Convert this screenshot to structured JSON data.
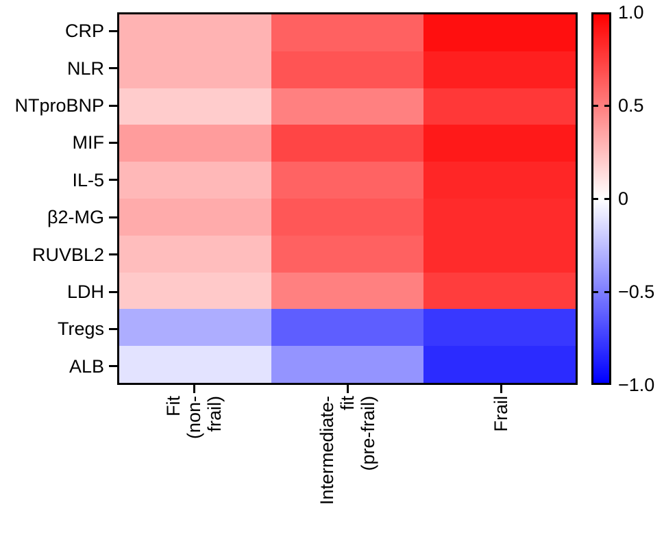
{
  "figure": {
    "kind": "correlation-heatmap-figure",
    "background": "#ffffff",
    "border_color": "#000000"
  },
  "chart_data": {
    "type": "heatmap",
    "rows": [
      "CRP",
      "NLR",
      "NTproBNP",
      "MIF",
      "IL-5",
      "β2-MG",
      "RUVBL2",
      "LDH",
      "Tregs",
      "ALB"
    ],
    "columns": [
      "Fit (non-frail)",
      "Intermediate-fit\n(pre-frail)",
      "Frail"
    ],
    "values": [
      [
        0.3,
        0.62,
        0.94
      ],
      [
        0.3,
        0.67,
        0.88
      ],
      [
        0.2,
        0.5,
        0.78
      ],
      [
        0.39,
        0.73,
        0.9
      ],
      [
        0.28,
        0.61,
        0.85
      ],
      [
        0.33,
        0.66,
        0.83
      ],
      [
        0.26,
        0.62,
        0.83
      ],
      [
        0.21,
        0.5,
        0.76
      ],
      [
        -0.32,
        -0.63,
        -0.78
      ],
      [
        -0.11,
        -0.42,
        -0.83
      ]
    ],
    "colormap": "blue-white-red",
    "vmin": -1.0,
    "vmax": 1.0,
    "colorbar_position": "right",
    "colorbar_tick_labels": [
      "1.0",
      "0.5",
      "0",
      "−0.5",
      "−1.0"
    ],
    "colorbar_tick_values": [
      1.0,
      0.5,
      0,
      -0.5,
      -1.0
    ],
    "colormap_colors": {
      "positive": "#ff0000",
      "zero": "#ffffff",
      "negative": "#0000ff"
    },
    "grid": false,
    "title": "",
    "xlabel": "",
    "ylabel": ""
  }
}
